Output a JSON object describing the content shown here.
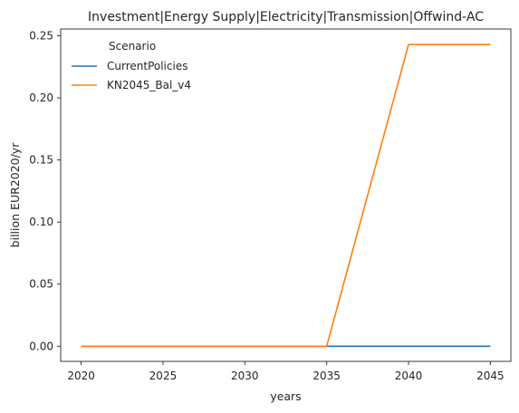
{
  "chart_data": {
    "type": "line",
    "title": "Investment|Energy Supply|Electricity|Transmission|Offwind-AC",
    "xlabel": "years",
    "ylabel": "billion EUR2020/yr",
    "x": [
      2020,
      2025,
      2030,
      2035,
      2040,
      2045
    ],
    "xticks": [
      "2020",
      "2025",
      "2030",
      "2035",
      "2040",
      "2045"
    ],
    "yticks": [
      "0.00",
      "0.05",
      "0.10",
      "0.15",
      "0.20",
      "0.25"
    ],
    "xlim": [
      2018.75,
      2046.25
    ],
    "ylim": [
      -0.0122,
      0.2555
    ],
    "legend": {
      "title": "Scenario",
      "placement": "top-left"
    },
    "grid": false,
    "series": [
      {
        "name": "CurrentPolicies",
        "color": "#1f77b4",
        "values": [
          0,
          0,
          0,
          0,
          0,
          0
        ]
      },
      {
        "name": "KN2045_Bal_v4",
        "color": "#ff7f0e",
        "values": [
          0,
          0,
          0,
          0,
          0.243,
          0.243
        ]
      }
    ]
  }
}
